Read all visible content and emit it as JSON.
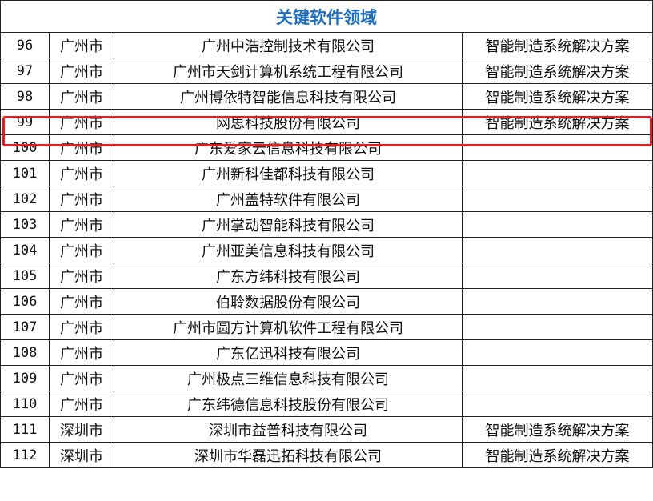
{
  "title": "关键软件领域",
  "highlight_color": "#e02020",
  "title_color": "#1f6fc0",
  "highlighted_row": "99",
  "rows": [
    {
      "no": "96",
      "city": "广州市",
      "company": "广州中浩控制技术有限公司",
      "field": "智能制造系统解决方案"
    },
    {
      "no": "97",
      "city": "广州市",
      "company": "广州市天剑计算机系统工程有限公司",
      "field": "智能制造系统解决方案"
    },
    {
      "no": "98",
      "city": "广州市",
      "company": "广州博依特智能信息科技有限公司",
      "field": "智能制造系统解决方案"
    },
    {
      "no": "99",
      "city": "广州市",
      "company": "网思科技股份有限公司",
      "field": "智能制造系统解决方案"
    },
    {
      "no": "100",
      "city": "广州市",
      "company": "广东爱家云信息科技有限公司",
      "field": ""
    },
    {
      "no": "101",
      "city": "广州市",
      "company": "广州新科佳都科技有限公司",
      "field": ""
    },
    {
      "no": "102",
      "city": "广州市",
      "company": "广州盖特软件有限公司",
      "field": ""
    },
    {
      "no": "103",
      "city": "广州市",
      "company": "广州掌动智能科技有限公司",
      "field": ""
    },
    {
      "no": "104",
      "city": "广州市",
      "company": "广州亚美信息科技有限公司",
      "field": ""
    },
    {
      "no": "105",
      "city": "广州市",
      "company": "广东方纬科技有限公司",
      "field": ""
    },
    {
      "no": "106",
      "city": "广州市",
      "company": "伯聆数据股份有限公司",
      "field": ""
    },
    {
      "no": "107",
      "city": "广州市",
      "company": "广州市圆方计算机软件工程有限公司",
      "field": ""
    },
    {
      "no": "108",
      "city": "广州市",
      "company": "广东亿迅科技有限公司",
      "field": ""
    },
    {
      "no": "109",
      "city": "广州市",
      "company": "广州极点三维信息科技有限公司",
      "field": ""
    },
    {
      "no": "110",
      "city": "广州市",
      "company": "广东纬德信息科技股份有限公司",
      "field": ""
    },
    {
      "no": "111",
      "city": "深圳市",
      "company": "深圳市益普科技有限公司",
      "field": "智能制造系统解决方案"
    },
    {
      "no": "112",
      "city": "深圳市",
      "company": "深圳市华磊迅拓科技有限公司",
      "field": "智能制造系统解决方案"
    }
  ]
}
